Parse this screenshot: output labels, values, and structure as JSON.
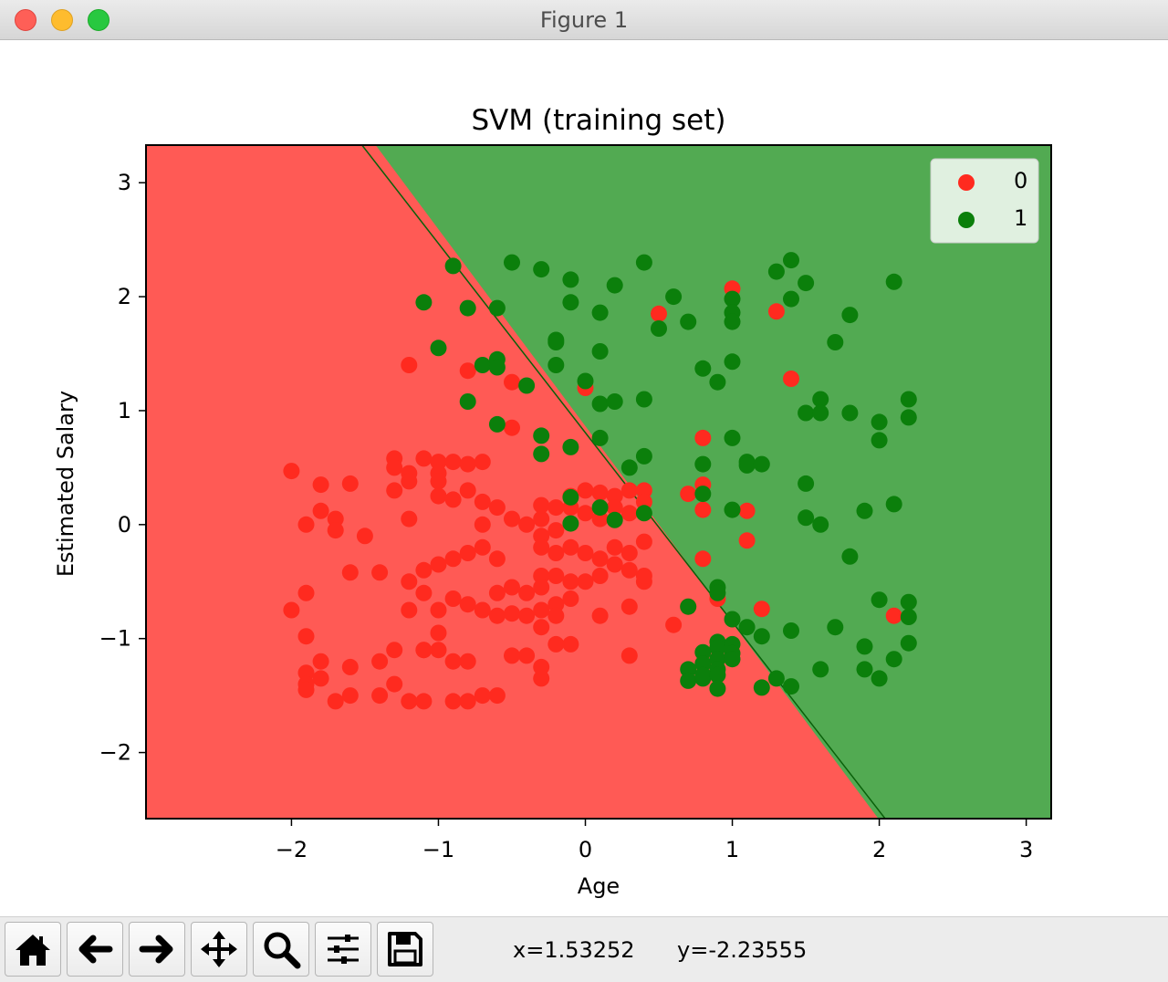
{
  "window": {
    "title": "Figure 1"
  },
  "toolbar": {
    "buttons": [
      {
        "name": "home-icon",
        "label": "Home"
      },
      {
        "name": "back-icon",
        "label": "Back"
      },
      {
        "name": "forward-icon",
        "label": "Forward"
      },
      {
        "name": "pan-icon",
        "label": "Pan"
      },
      {
        "name": "zoom-icon",
        "label": "Zoom"
      },
      {
        "name": "subplots-icon",
        "label": "Configure subplots"
      },
      {
        "name": "save-icon",
        "label": "Save"
      }
    ],
    "x_readout": "x=1.53252",
    "y_readout": "y=-2.23555"
  },
  "chart_data": {
    "type": "scatter",
    "title": "SVM (training set)",
    "xlabel": "Age",
    "ylabel": "Estimated Salary",
    "xlim": [
      -2.99,
      3.17
    ],
    "ylim": [
      -2.58,
      3.33
    ],
    "xticks": [
      -2,
      -1,
      0,
      1,
      2,
      3
    ],
    "yticks": [
      -2,
      -1,
      0,
      1,
      2,
      3
    ],
    "xtick_labels": [
      "−2",
      "−1",
      "0",
      "1",
      "2",
      "3"
    ],
    "ytick_labels": [
      "−2",
      "−1",
      "0",
      "1",
      "2",
      "3"
    ],
    "grid": false,
    "legend": {
      "position": "top-right"
    },
    "decision_boundary": {
      "x1": [
        -1.52,
        3.33
      ],
      "x2": [
        2.04,
        -2.58
      ]
    },
    "regions": [
      {
        "class": "0",
        "color": "#ff5a55",
        "side": "lower-left"
      },
      {
        "class": "1",
        "color": "#52aa52",
        "side": "upper-right"
      }
    ],
    "series": [
      {
        "name": "0",
        "color": "#ff2a1f",
        "points": [
          [
            -2.0,
            0.47
          ],
          [
            -1.9,
            0.0
          ],
          [
            -1.8,
            0.35
          ],
          [
            -1.8,
            0.12
          ],
          [
            -1.7,
            0.05
          ],
          [
            -1.7,
            -0.05
          ],
          [
            -1.6,
            0.36
          ],
          [
            -1.5,
            -0.1
          ],
          [
            -1.6,
            -0.42
          ],
          [
            -1.4,
            -0.42
          ],
          [
            -1.3,
            0.58
          ],
          [
            -1.3,
            0.5
          ],
          [
            -1.3,
            0.3
          ],
          [
            -1.2,
            0.45
          ],
          [
            -1.2,
            0.38
          ],
          [
            -1.1,
            0.58
          ],
          [
            -1.0,
            0.55
          ],
          [
            -1.0,
            0.45
          ],
          [
            -1.0,
            0.38
          ],
          [
            -0.9,
            0.55
          ],
          [
            -0.8,
            0.53
          ],
          [
            -0.7,
            0.55
          ],
          [
            -1.2,
            0.05
          ],
          [
            -1.0,
            0.25
          ],
          [
            -0.9,
            0.22
          ],
          [
            -0.8,
            0.3
          ],
          [
            -0.7,
            0.2
          ],
          [
            -0.7,
            0.0
          ],
          [
            -0.6,
            0.15
          ],
          [
            -0.5,
            0.05
          ],
          [
            -0.4,
            0.0
          ],
          [
            -0.3,
            0.05
          ],
          [
            -0.3,
            0.17
          ],
          [
            -0.2,
            0.15
          ],
          [
            -0.1,
            0.25
          ],
          [
            0.0,
            0.3
          ],
          [
            0.1,
            0.28
          ],
          [
            0.2,
            0.25
          ],
          [
            0.3,
            0.3
          ],
          [
            0.4,
            0.3
          ],
          [
            0.4,
            0.2
          ],
          [
            0.3,
            0.1
          ],
          [
            0.2,
            0.15
          ],
          [
            0.1,
            0.05
          ],
          [
            0.0,
            0.1
          ],
          [
            -0.1,
            0.15
          ],
          [
            -0.2,
            -0.05
          ],
          [
            -0.3,
            -0.1
          ],
          [
            -0.3,
            -0.2
          ],
          [
            -0.2,
            -0.25
          ],
          [
            -0.1,
            -0.2
          ],
          [
            0.0,
            -0.25
          ],
          [
            0.1,
            -0.3
          ],
          [
            0.2,
            -0.2
          ],
          [
            0.3,
            -0.25
          ],
          [
            0.4,
            -0.15
          ],
          [
            0.3,
            -0.4
          ],
          [
            0.2,
            -0.35
          ],
          [
            0.1,
            -0.45
          ],
          [
            0.0,
            -0.5
          ],
          [
            -0.1,
            -0.5
          ],
          [
            -0.2,
            -0.45
          ],
          [
            -0.3,
            -0.45
          ],
          [
            -0.3,
            -0.55
          ],
          [
            -0.4,
            -0.6
          ],
          [
            -0.5,
            -0.55
          ],
          [
            -0.6,
            -0.6
          ],
          [
            -0.6,
            -0.3
          ],
          [
            -0.7,
            -0.2
          ],
          [
            -0.8,
            -0.25
          ],
          [
            -0.9,
            -0.3
          ],
          [
            -1.0,
            -0.35
          ],
          [
            -1.1,
            -0.4
          ],
          [
            -1.2,
            -0.5
          ],
          [
            -1.1,
            -0.6
          ],
          [
            -1.0,
            -0.75
          ],
          [
            -0.9,
            -0.65
          ],
          [
            -0.8,
            -0.7
          ],
          [
            -0.7,
            -0.75
          ],
          [
            -0.6,
            -0.8
          ],
          [
            -0.5,
            -0.78
          ],
          [
            -0.4,
            -0.8
          ],
          [
            -0.3,
            -0.75
          ],
          [
            -0.2,
            -0.7
          ],
          [
            -0.1,
            -0.65
          ],
          [
            0.1,
            -0.8
          ],
          [
            0.3,
            -0.72
          ],
          [
            0.4,
            -0.5
          ],
          [
            0.4,
            -0.45
          ],
          [
            -1.2,
            -0.75
          ],
          [
            -1.0,
            -0.95
          ],
          [
            -1.1,
            -1.1
          ],
          [
            -1.3,
            -1.1
          ],
          [
            -1.4,
            -1.2
          ],
          [
            -1.6,
            -1.25
          ],
          [
            -1.8,
            -1.2
          ],
          [
            -1.9,
            -1.3
          ],
          [
            -1.9,
            -1.4
          ],
          [
            -1.8,
            -1.35
          ],
          [
            -1.6,
            -1.5
          ],
          [
            -1.4,
            -1.5
          ],
          [
            -1.3,
            -1.4
          ],
          [
            -1.2,
            -1.55
          ],
          [
            -1.1,
            -1.55
          ],
          [
            -0.9,
            -1.55
          ],
          [
            -0.8,
            -1.55
          ],
          [
            -0.7,
            -1.5
          ],
          [
            -0.6,
            -1.5
          ],
          [
            -0.3,
            -1.35
          ],
          [
            -0.3,
            -1.25
          ],
          [
            -0.1,
            -1.05
          ],
          [
            -0.2,
            -1.05
          ],
          [
            -0.4,
            -1.15
          ],
          [
            -0.5,
            -1.15
          ],
          [
            -0.8,
            -1.2
          ],
          [
            -0.9,
            -1.2
          ],
          [
            -1.0,
            -1.1
          ],
          [
            -1.1,
            -1.1
          ],
          [
            -0.3,
            -0.9
          ],
          [
            -0.2,
            -0.8
          ],
          [
            -1.9,
            -0.6
          ],
          [
            -2.0,
            -0.75
          ],
          [
            -1.9,
            -0.98
          ],
          [
            -1.9,
            -1.45
          ],
          [
            -1.7,
            -1.55
          ],
          [
            -0.5,
            0.85
          ],
          [
            -0.5,
            1.25
          ],
          [
            -0.8,
            1.35
          ],
          [
            -1.2,
            1.4
          ],
          [
            0.0,
            1.2
          ],
          [
            0.5,
            1.85
          ],
          [
            1.0,
            2.07
          ],
          [
            1.3,
            1.87
          ],
          [
            1.4,
            1.28
          ],
          [
            0.8,
            0.76
          ],
          [
            0.8,
            0.35
          ],
          [
            0.8,
            0.13
          ],
          [
            0.7,
            0.27
          ],
          [
            1.1,
            0.12
          ],
          [
            1.1,
            -0.14
          ],
          [
            0.8,
            -0.3
          ],
          [
            0.6,
            -0.88
          ],
          [
            0.7,
            -0.72
          ],
          [
            0.9,
            -0.65
          ],
          [
            1.2,
            -0.74
          ],
          [
            2.1,
            -0.8
          ],
          [
            0.3,
            -1.15
          ]
        ]
      },
      {
        "name": "1",
        "color": "#0b7f0b",
        "points": [
          [
            -1.1,
            1.95
          ],
          [
            -0.9,
            2.27
          ],
          [
            -0.5,
            2.3
          ],
          [
            -0.3,
            2.24
          ],
          [
            -0.1,
            2.15
          ],
          [
            0.2,
            2.1
          ],
          [
            0.4,
            2.3
          ],
          [
            0.6,
            2.0
          ],
          [
            -0.1,
            1.95
          ],
          [
            0.1,
            1.86
          ],
          [
            -0.8,
            1.9
          ],
          [
            -0.6,
            1.9
          ],
          [
            -1.0,
            1.55
          ],
          [
            -0.7,
            1.4
          ],
          [
            -0.6,
            1.45
          ],
          [
            -0.6,
            1.38
          ],
          [
            -0.4,
            1.22
          ],
          [
            -0.2,
            1.62
          ],
          [
            -0.2,
            1.6
          ],
          [
            -0.2,
            1.4
          ],
          [
            0.1,
            1.52
          ],
          [
            0.0,
            1.26
          ],
          [
            0.1,
            1.06
          ],
          [
            0.2,
            1.08
          ],
          [
            0.4,
            1.1
          ],
          [
            0.7,
            1.78
          ],
          [
            0.5,
            1.72
          ],
          [
            0.8,
            1.37
          ],
          [
            0.9,
            1.25
          ],
          [
            1.0,
            1.43
          ],
          [
            1.0,
            1.98
          ],
          [
            1.0,
            1.86
          ],
          [
            1.0,
            1.78
          ],
          [
            1.3,
            2.22
          ],
          [
            1.4,
            2.32
          ],
          [
            1.5,
            2.12
          ],
          [
            1.4,
            1.98
          ],
          [
            1.8,
            1.84
          ],
          [
            2.1,
            2.13
          ],
          [
            1.7,
            1.6
          ],
          [
            1.6,
            1.1
          ],
          [
            1.5,
            0.98
          ],
          [
            1.6,
            0.98
          ],
          [
            1.8,
            0.98
          ],
          [
            2.0,
            0.9
          ],
          [
            2.2,
            1.1
          ],
          [
            2.2,
            0.94
          ],
          [
            2.0,
            0.74
          ],
          [
            -0.8,
            1.08
          ],
          [
            -0.6,
            0.88
          ],
          [
            -0.3,
            0.78
          ],
          [
            -0.3,
            0.62
          ],
          [
            -0.1,
            0.68
          ],
          [
            0.1,
            0.76
          ],
          [
            0.3,
            0.5
          ],
          [
            0.4,
            0.6
          ],
          [
            0.8,
            0.53
          ],
          [
            1.0,
            0.76
          ],
          [
            1.1,
            0.55
          ],
          [
            1.1,
            0.52
          ],
          [
            1.2,
            0.53
          ],
          [
            1.5,
            0.36
          ],
          [
            0.8,
            0.27
          ],
          [
            1.0,
            0.13
          ],
          [
            1.5,
            0.06
          ],
          [
            1.6,
            0.0
          ],
          [
            1.9,
            0.12
          ],
          [
            2.1,
            0.18
          ],
          [
            -0.1,
            0.24
          ],
          [
            0.1,
            0.15
          ],
          [
            0.2,
            0.04
          ],
          [
            0.4,
            0.1
          ],
          [
            -0.1,
            0.01
          ],
          [
            1.8,
            -0.28
          ],
          [
            0.9,
            -0.55
          ],
          [
            0.9,
            -0.6
          ],
          [
            0.7,
            -0.72
          ],
          [
            1.0,
            -0.83
          ],
          [
            1.1,
            -0.9
          ],
          [
            1.2,
            -0.98
          ],
          [
            1.4,
            -0.93
          ],
          [
            1.7,
            -0.9
          ],
          [
            2.0,
            -0.66
          ],
          [
            2.2,
            -0.68
          ],
          [
            2.2,
            -0.81
          ],
          [
            1.9,
            -1.07
          ],
          [
            2.2,
            -1.04
          ],
          [
            2.1,
            -1.18
          ],
          [
            1.9,
            -1.27
          ],
          [
            2.0,
            -1.35
          ],
          [
            1.6,
            -1.27
          ],
          [
            1.4,
            -1.42
          ],
          [
            1.3,
            -1.35
          ],
          [
            1.2,
            -1.43
          ],
          [
            0.9,
            -1.03
          ],
          [
            0.9,
            -1.08
          ],
          [
            1.0,
            -1.05
          ],
          [
            1.0,
            -1.13
          ],
          [
            0.8,
            -1.12
          ],
          [
            0.8,
            -1.22
          ],
          [
            0.9,
            -1.18
          ],
          [
            0.9,
            -1.27
          ],
          [
            1.0,
            -1.18
          ],
          [
            0.7,
            -1.27
          ],
          [
            0.7,
            -1.37
          ],
          [
            0.8,
            -1.35
          ],
          [
            0.8,
            -1.32
          ],
          [
            0.9,
            -1.32
          ],
          [
            0.9,
            -1.44
          ]
        ]
      }
    ]
  }
}
